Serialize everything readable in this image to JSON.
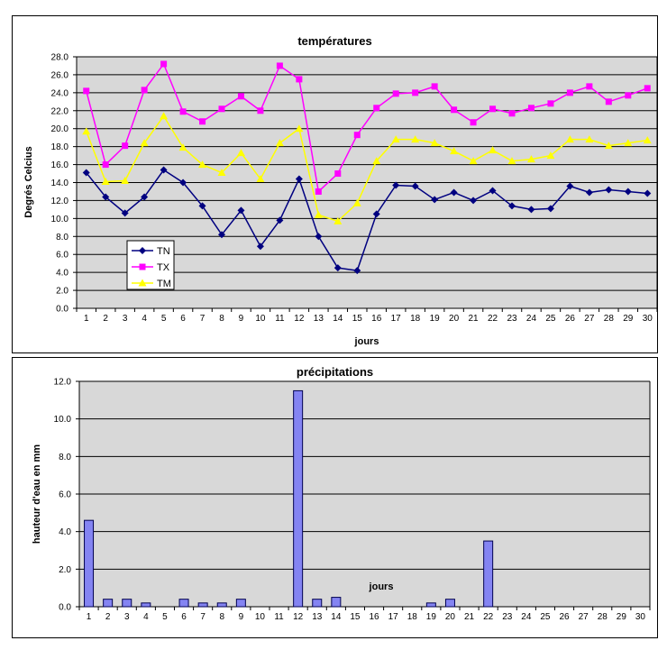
{
  "chart_data": [
    {
      "type": "line",
      "title": "températures",
      "xlabel": "jours",
      "ylabel": "Degrés Celcius",
      "x": [
        1,
        2,
        3,
        4,
        5,
        6,
        7,
        8,
        9,
        10,
        11,
        12,
        13,
        14,
        15,
        16,
        17,
        18,
        19,
        20,
        21,
        22,
        23,
        24,
        25,
        26,
        27,
        28,
        29,
        30
      ],
      "ylim": [
        0.0,
        28.0
      ],
      "ytick_step": 2.0,
      "grid": true,
      "plot_bg": "#D8D8D8",
      "legend_position": "inside-left",
      "series": [
        {
          "name": "TN",
          "color": "#000080",
          "marker": "diamond",
          "values": [
            15.1,
            12.4,
            10.6,
            12.4,
            15.4,
            14.0,
            11.4,
            8.2,
            10.9,
            6.9,
            9.8,
            14.4,
            8.0,
            4.5,
            4.2,
            10.5,
            13.7,
            13.6,
            12.1,
            12.9,
            12.0,
            13.1,
            11.4,
            11.0,
            11.1,
            13.6,
            12.9,
            13.2,
            13.0,
            12.8
          ]
        },
        {
          "name": "TX",
          "color": "#FF00FF",
          "marker": "square",
          "values": [
            24.2,
            16.0,
            18.1,
            24.3,
            27.2,
            21.9,
            20.8,
            22.2,
            23.6,
            22.0,
            27.0,
            25.5,
            13.0,
            15.0,
            19.3,
            22.3,
            23.9,
            24.0,
            24.7,
            22.1,
            20.7,
            22.2,
            21.7,
            22.3,
            22.8,
            24.0,
            24.7,
            23.0,
            23.7,
            24.5
          ]
        },
        {
          "name": "TM",
          "color": "#FFFF00",
          "marker": "triangle",
          "values": [
            19.7,
            14.1,
            14.2,
            18.4,
            21.4,
            17.9,
            16.0,
            15.1,
            17.3,
            14.4,
            18.4,
            20.0,
            10.4,
            9.7,
            11.7,
            16.4,
            18.8,
            18.8,
            18.4,
            17.5,
            16.4,
            17.6,
            16.4,
            16.6,
            17.0,
            18.8,
            18.8,
            18.1,
            18.4,
            18.7
          ]
        }
      ]
    },
    {
      "type": "bar",
      "title": "précipitations",
      "xlabel": "jours",
      "ylabel": "hauteur d'eau en mm",
      "categories": [
        1,
        2,
        3,
        4,
        5,
        6,
        7,
        8,
        9,
        10,
        11,
        12,
        13,
        14,
        15,
        16,
        17,
        18,
        19,
        20,
        21,
        22,
        23,
        24,
        25,
        26,
        27,
        28,
        29,
        30
      ],
      "values": [
        4.6,
        0.4,
        0.4,
        0.2,
        0,
        0.4,
        0.2,
        0.2,
        0.4,
        0,
        0,
        11.5,
        0.4,
        0.5,
        0,
        0,
        0,
        0,
        0.2,
        0.4,
        0,
        3.5,
        0,
        0,
        0,
        0,
        0,
        0,
        0,
        0
      ],
      "ylim": [
        0.0,
        12.0
      ],
      "ytick_step": 2.0,
      "grid": true,
      "plot_bg": "#D8D8D8",
      "bar_color": "#8484F2",
      "bar_border": "#000050"
    }
  ]
}
